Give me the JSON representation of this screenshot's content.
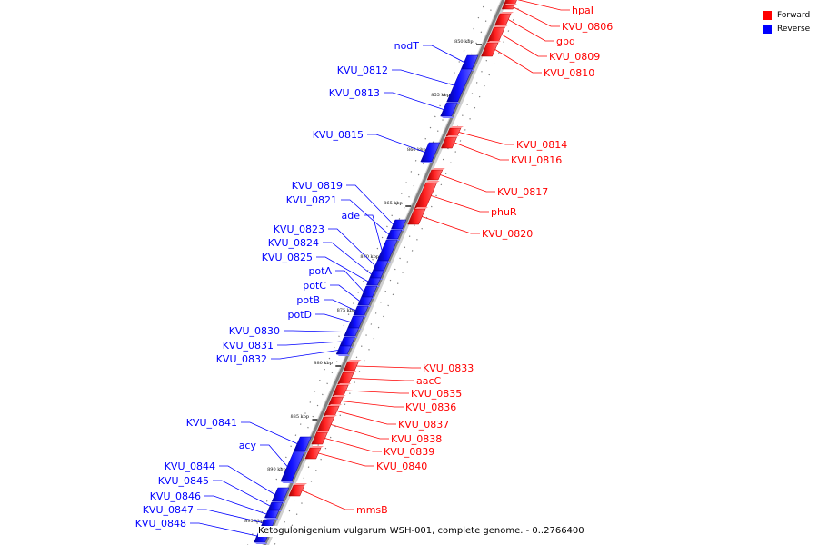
{
  "legend": [
    {
      "label": "Forward",
      "color": "#ff0000"
    },
    {
      "label": "Reverse",
      "color": "#0000ff"
    }
  ],
  "caption": "Ketogulonigenium vulgarum WSH-001, complete genome. - 0..2766400",
  "colors": {
    "forward": "#ff0000",
    "reverse": "#0000ff",
    "backbone": "#808080"
  },
  "ticks": [
    "850 kbp",
    "855 kbp",
    "860 kbp",
    "865 kbp",
    "870 kbp",
    "875 kbp",
    "880 kbp",
    "885 kbp",
    "890 kbp",
    "895 kbp"
  ],
  "forward_genes": [
    "hpaI",
    "KVU_0806",
    "gbd",
    "KVU_0809",
    "KVU_0810",
    "KVU_0814",
    "KVU_0816",
    "KVU_0817",
    "phuR",
    "KVU_0820",
    "KVU_0833",
    "aacC",
    "KVU_0835",
    "KVU_0836",
    "KVU_0837",
    "KVU_0838",
    "KVU_0839",
    "KVU_0840",
    "mmsB"
  ],
  "reverse_genes": [
    "nodT",
    "KVU_0812",
    "KVU_0813",
    "KVU_0815",
    "KVU_0819",
    "KVU_0821",
    "ade",
    "KVU_0823",
    "KVU_0824",
    "KVU_0825",
    "potA",
    "potC",
    "potB",
    "potD",
    "KVU_0830",
    "KVU_0831",
    "KVU_0832",
    "KVU_0841",
    "acy",
    "KVU_0844",
    "KVU_0845",
    "KVU_0846",
    "KVU_0847",
    "KVU_0848"
  ]
}
